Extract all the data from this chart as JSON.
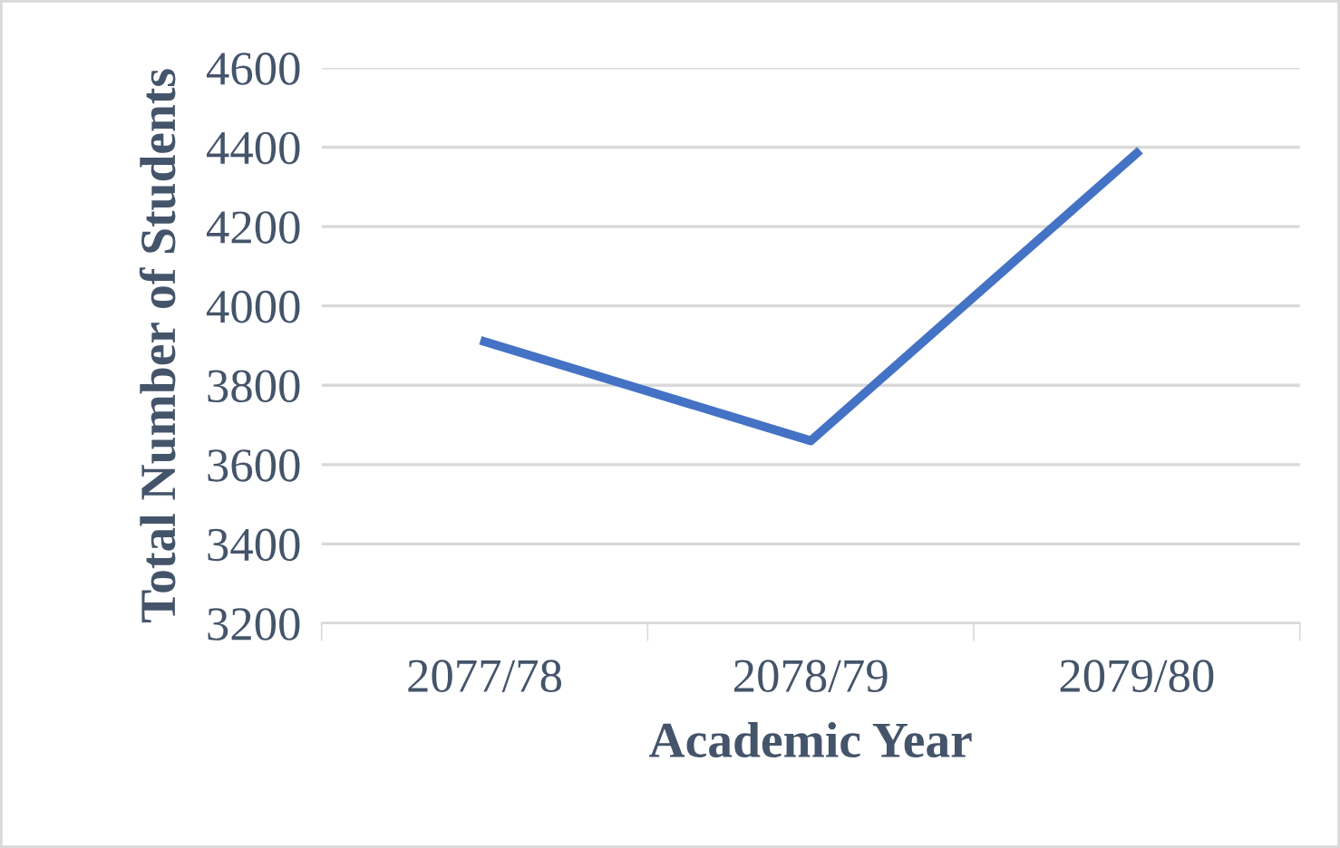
{
  "chart_data": {
    "type": "line",
    "xlabel": "Academic Year",
    "ylabel": "Total Number of Students",
    "categories": [
      "2077/78",
      "2078/79",
      "2079/80"
    ],
    "series": [
      {
        "color": "#4472c4",
        "values": [
          3910,
          3660,
          4385
        ]
      }
    ],
    "ylim": [
      3200,
      4600
    ],
    "yticks": [
      3200,
      3400,
      3600,
      3800,
      4000,
      4200,
      4400,
      4600
    ],
    "grid": "y",
    "marker": "none",
    "line_style": "solid",
    "legend": false
  }
}
